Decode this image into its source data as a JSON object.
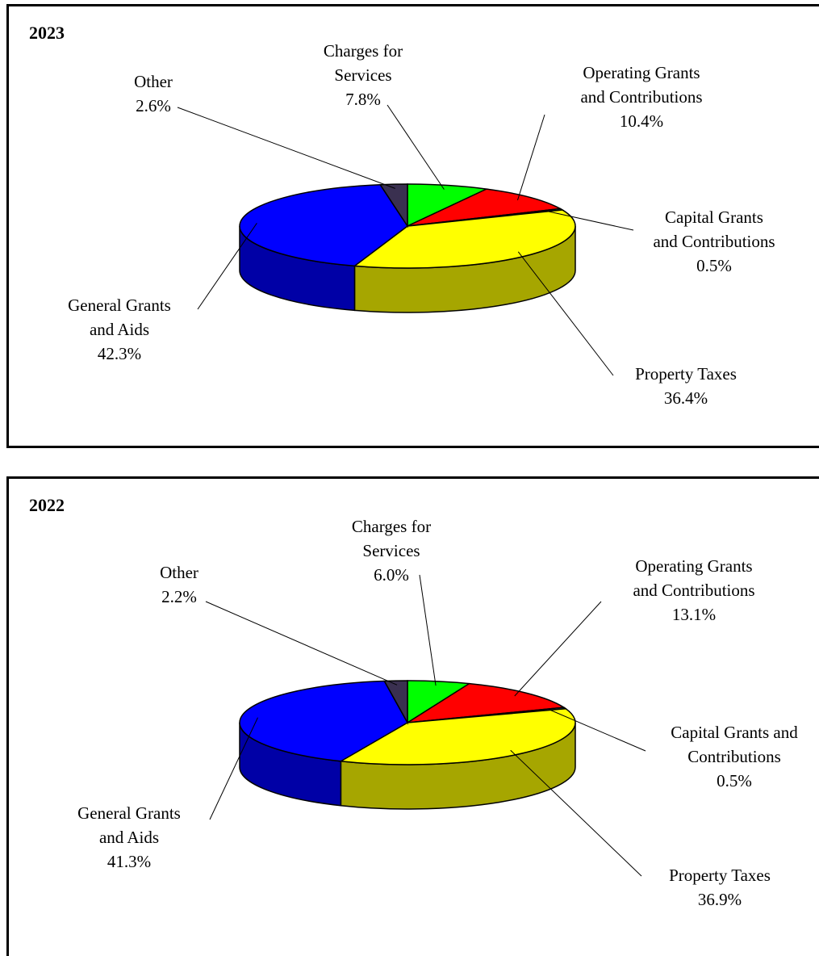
{
  "chart_data": [
    {
      "type": "pie",
      "title": "2023",
      "categories": [
        "Charges for\nServices",
        "Operating Grants\nand Contributions",
        "Capital Grants\nand Contributions",
        "Property Taxes",
        "General Grants\nand Aids",
        "Other"
      ],
      "values": [
        7.8,
        10.4,
        0.5,
        36.4,
        42.3,
        2.6
      ],
      "value_labels": [
        "7.8%",
        "10.4%",
        "0.5%",
        "36.4%",
        "42.3%",
        "2.6%"
      ],
      "colors": [
        "#00ff00",
        "#ff0000",
        "#00c0c0",
        "#ffff00",
        "#0000ff",
        "#3a3050"
      ]
    },
    {
      "type": "pie",
      "title": "2022",
      "categories": [
        "Charges for\nServices",
        "Operating Grants\nand Contributions",
        "Capital Grants and\nContributions",
        "Property Taxes",
        "General Grants\nand Aids",
        "Other"
      ],
      "values": [
        6.0,
        13.1,
        0.5,
        36.9,
        41.3,
        2.2
      ],
      "value_labels": [
        "6.0%",
        "13.1%",
        "0.5%",
        "36.9%",
        "41.3%",
        "2.2%"
      ],
      "colors": [
        "#00ff00",
        "#ff0000",
        "#00c0c0",
        "#ffff00",
        "#0000ff",
        "#3a3050"
      ]
    }
  ]
}
